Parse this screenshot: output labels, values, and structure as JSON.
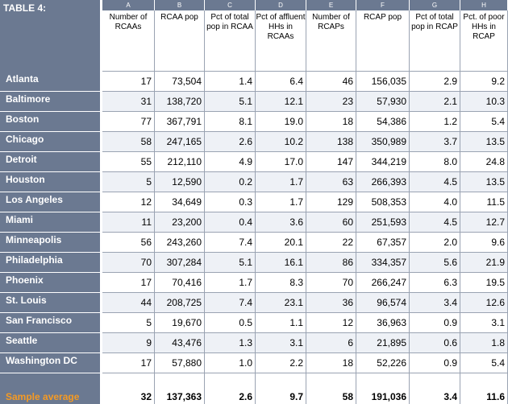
{
  "table": {
    "title": "TABLE 4:",
    "letters": [
      "A",
      "B",
      "C",
      "D",
      "E",
      "F",
      "G",
      "H"
    ],
    "headers": [
      "Number of RCAAs",
      "RCAA pop",
      "Pct of total pop in RCAA",
      "Pct of affluent HHs in RCAAs",
      "Number of RCAPs",
      "RCAP pop",
      "Pct of total pop in RCAP",
      "Pct. of poor HHs in RCAP"
    ],
    "rows": [
      {
        "city": "Atlanta",
        "values": [
          "17",
          "73,504",
          "1.4",
          "6.4",
          "46",
          "156,035",
          "2.9",
          "9.2"
        ]
      },
      {
        "city": "Baltimore",
        "values": [
          "31",
          "138,720",
          "5.1",
          "12.1",
          "23",
          "57,930",
          "2.1",
          "10.3"
        ]
      },
      {
        "city": "Boston",
        "values": [
          "77",
          "367,791",
          "8.1",
          "19.0",
          "18",
          "54,386",
          "1.2",
          "5.4"
        ]
      },
      {
        "city": "Chicago",
        "values": [
          "58",
          "247,165",
          "2.6",
          "10.2",
          "138",
          "350,989",
          "3.7",
          "13.5"
        ]
      },
      {
        "city": "Detroit",
        "values": [
          "55",
          "212,110",
          "4.9",
          "17.0",
          "147",
          "344,219",
          "8.0",
          "24.8"
        ]
      },
      {
        "city": "Houston",
        "values": [
          "5",
          "12,590",
          "0.2",
          "1.7",
          "63",
          "266,393",
          "4.5",
          "13.5"
        ]
      },
      {
        "city": "Los Angeles",
        "values": [
          "12",
          "34,649",
          "0.3",
          "1.7",
          "129",
          "508,353",
          "4.0",
          "11.5"
        ]
      },
      {
        "city": "Miami",
        "values": [
          "11",
          "23,200",
          "0.4",
          "3.6",
          "60",
          "251,593",
          "4.5",
          "12.7"
        ]
      },
      {
        "city": "Minneapolis",
        "values": [
          "56",
          "243,260",
          "7.4",
          "20.1",
          "22",
          "67,357",
          "2.0",
          "9.6"
        ]
      },
      {
        "city": "Philadelphia",
        "values": [
          "70",
          "307,284",
          "5.1",
          "16.1",
          "86",
          "334,357",
          "5.6",
          "21.9"
        ]
      },
      {
        "city": "Phoenix",
        "values": [
          "17",
          "70,416",
          "1.7",
          "8.3",
          "70",
          "266,247",
          "6.3",
          "19.5"
        ]
      },
      {
        "city": "St. Louis",
        "values": [
          "44",
          "208,725",
          "7.4",
          "23.1",
          "36",
          "96,574",
          "3.4",
          "12.6"
        ]
      },
      {
        "city": "San Francisco",
        "values": [
          "5",
          "19,670",
          "0.5",
          "1.1",
          "12",
          "36,963",
          "0.9",
          "3.1"
        ]
      },
      {
        "city": "Seattle",
        "values": [
          "9",
          "43,476",
          "1.3",
          "3.1",
          "6",
          "21,895",
          "0.6",
          "1.8"
        ]
      },
      {
        "city": "Washington DC",
        "values": [
          "17",
          "57,880",
          "1.0",
          "2.2",
          "18",
          "52,226",
          "0.9",
          "5.4"
        ]
      }
    ],
    "average": {
      "label": "Sample average",
      "values": [
        "32",
        "137,363",
        "2.6",
        "9.7",
        "58",
        "191,036",
        "3.4",
        "11.6"
      ]
    }
  },
  "colors": {
    "header_bg": "#6b7991",
    "average_label": "#f59a23",
    "row_stripe": "#eef1f6"
  }
}
